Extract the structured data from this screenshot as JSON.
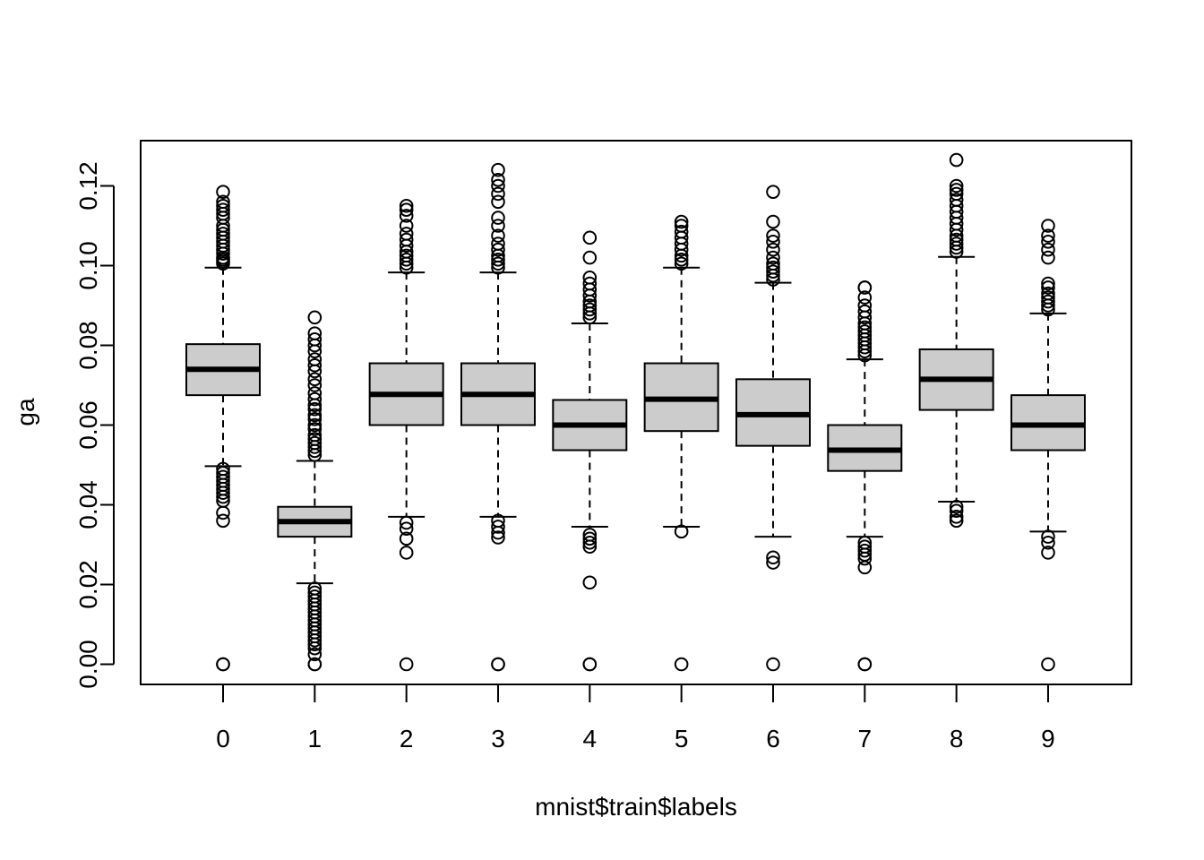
{
  "chart_data": {
    "type": "boxplot",
    "xlabel": "mnist$train$labels",
    "ylabel": "ga",
    "ylim": [
      -0.005,
      0.131
    ],
    "yticks": [
      0.0,
      0.02,
      0.04,
      0.06,
      0.08,
      0.1,
      0.12
    ],
    "ytick_labels": [
      "0.00",
      "0.02",
      "0.04",
      "0.06",
      "0.08",
      "0.10",
      "0.12"
    ],
    "box_fill": "#cccccc",
    "categories": [
      "0",
      "1",
      "2",
      "3",
      "4",
      "5",
      "6",
      "7",
      "8",
      "9"
    ],
    "boxes": [
      {
        "label": "0",
        "whisker_low": 0.0497,
        "q1": 0.0675,
        "median": 0.074,
        "q3": 0.0803,
        "whisker_high": 0.0995,
        "outliers": [
          0.036,
          0.038,
          0.041,
          0.042,
          0.043,
          0.044,
          0.045,
          0.046,
          0.047,
          0.048,
          0.049,
          0.1005,
          0.101,
          0.1015,
          0.102,
          0.103,
          0.104,
          0.105,
          0.106,
          0.107,
          0.108,
          0.109,
          0.11,
          0.112,
          0.113,
          0.114,
          0.115,
          0.116,
          0.1185,
          0.0,
          0.0
        ]
      },
      {
        "label": "1",
        "whisker_low": 0.0203,
        "q1": 0.032,
        "median": 0.0358,
        "q3": 0.0395,
        "whisker_high": 0.051,
        "outliers": [
          0.0,
          0.0,
          0.0025,
          0.004,
          0.005,
          0.006,
          0.007,
          0.008,
          0.009,
          0.01,
          0.011,
          0.012,
          0.013,
          0.014,
          0.015,
          0.016,
          0.017,
          0.018,
          0.019,
          0.0525,
          0.0535,
          0.0545,
          0.0555,
          0.0565,
          0.0575,
          0.059,
          0.06,
          0.0615,
          0.0625,
          0.064,
          0.065,
          0.0665,
          0.068,
          0.07,
          0.0715,
          0.0735,
          0.075,
          0.0765,
          0.0785,
          0.08,
          0.0815,
          0.083,
          0.087
        ]
      },
      {
        "label": "2",
        "whisker_low": 0.037,
        "q1": 0.06,
        "median": 0.0677,
        "q3": 0.0755,
        "whisker_high": 0.0983,
        "outliers": [
          0.0,
          0.028,
          0.0315,
          0.034,
          0.0355,
          0.0995,
          0.1005,
          0.1015,
          0.1025,
          0.1035,
          0.105,
          0.1065,
          0.108,
          0.11,
          0.1125,
          0.114,
          0.115
        ]
      },
      {
        "label": "3",
        "whisker_low": 0.037,
        "q1": 0.06,
        "median": 0.0677,
        "q3": 0.0755,
        "whisker_high": 0.0983,
        "outliers": [
          0.0,
          0.0,
          0.0318,
          0.033,
          0.0345,
          0.036,
          0.0995,
          0.1005,
          0.1015,
          0.1025,
          0.104,
          0.1055,
          0.1075,
          0.11,
          0.112,
          0.116,
          0.118,
          0.12,
          0.1215,
          0.124
        ]
      },
      {
        "label": "4",
        "whisker_low": 0.0345,
        "q1": 0.0537,
        "median": 0.06,
        "q3": 0.0663,
        "whisker_high": 0.0855,
        "outliers": [
          0.0,
          0.0,
          0.0205,
          0.0295,
          0.0305,
          0.0315,
          0.0325,
          0.087,
          0.088,
          0.089,
          0.09,
          0.091,
          0.0925,
          0.094,
          0.0955,
          0.097,
          0.102,
          0.107
        ]
      },
      {
        "label": "5",
        "whisker_low": 0.0345,
        "q1": 0.0585,
        "median": 0.0665,
        "q3": 0.0755,
        "whisker_high": 0.0995,
        "outliers": [
          0.0,
          0.0333,
          0.1005,
          0.1015,
          0.1025,
          0.104,
          0.1055,
          0.107,
          0.1085,
          0.11,
          0.111
        ]
      },
      {
        "label": "6",
        "whisker_low": 0.032,
        "q1": 0.0548,
        "median": 0.0626,
        "q3": 0.0715,
        "whisker_high": 0.0957,
        "outliers": [
          0.0,
          0.0255,
          0.0268,
          0.0965,
          0.0975,
          0.0985,
          0.0995,
          0.1005,
          0.102,
          0.104,
          0.106,
          0.1075,
          0.111,
          0.1185
        ]
      },
      {
        "label": "7",
        "whisker_low": 0.032,
        "q1": 0.0485,
        "median": 0.0537,
        "q3": 0.06,
        "whisker_high": 0.0765,
        "outliers": [
          0.0,
          0.0,
          0.0243,
          0.0265,
          0.0275,
          0.0285,
          0.0295,
          0.0305,
          0.0775,
          0.0785,
          0.0795,
          0.0805,
          0.0815,
          0.0825,
          0.0835,
          0.0845,
          0.0855,
          0.087,
          0.0885,
          0.09,
          0.092,
          0.0945,
          0.0945
        ]
      },
      {
        "label": "8",
        "whisker_low": 0.0408,
        "q1": 0.0638,
        "median": 0.0715,
        "q3": 0.079,
        "whisker_high": 0.1022,
        "outliers": [
          0.036,
          0.037,
          0.0385,
          0.0395,
          0.1035,
          0.1045,
          0.1055,
          0.1065,
          0.1075,
          0.109,
          0.1105,
          0.112,
          0.1135,
          0.115,
          0.1165,
          0.118,
          0.119,
          0.12,
          0.1265
        ]
      },
      {
        "label": "9",
        "whisker_low": 0.0333,
        "q1": 0.0537,
        "median": 0.06,
        "q3": 0.0675,
        "whisker_high": 0.088,
        "outliers": [
          0.0,
          0.028,
          0.0305,
          0.032,
          0.089,
          0.09,
          0.091,
          0.092,
          0.093,
          0.0945,
          0.0955,
          0.102,
          0.104,
          0.106,
          0.1075,
          0.11
        ]
      }
    ]
  }
}
